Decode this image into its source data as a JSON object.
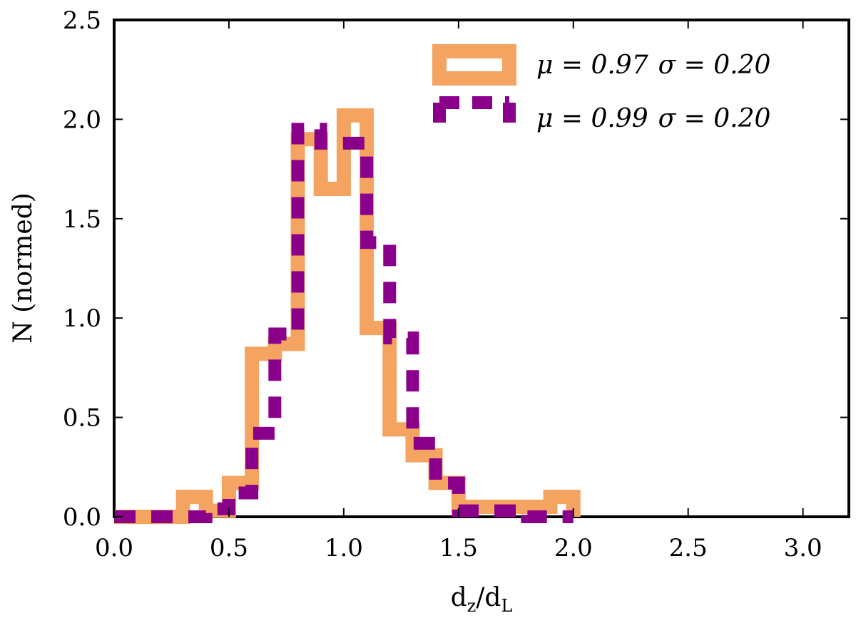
{
  "chart_data": {
    "type": "step",
    "title": "",
    "xlabel": "d_z/d_L",
    "ylabel": "N (normed)",
    "xlim": [
      0.0,
      3.2
    ],
    "ylim": [
      0.0,
      2.5
    ],
    "xticks": [
      "0.0",
      "0.5",
      "1.0",
      "1.5",
      "2.0",
      "2.5",
      "3.0"
    ],
    "xtick_values": [
      0.0,
      0.5,
      1.0,
      1.5,
      2.0,
      2.5,
      3.0
    ],
    "yticks": [
      "0.0",
      "0.5",
      "1.0",
      "1.5",
      "2.0",
      "2.5"
    ],
    "ytick_values": [
      0.0,
      0.5,
      1.0,
      1.5,
      2.0,
      2.5
    ],
    "grid": false,
    "legend_position": "top-right",
    "series": [
      {
        "name": "μ = 0.97 σ = 0.20",
        "mu": "0.97",
        "sigma": "0.20",
        "color": "#f4a460",
        "style": "solid",
        "bin_edges": [
          0.0,
          0.1,
          0.2,
          0.3,
          0.4,
          0.5,
          0.6,
          0.7,
          0.8,
          0.9,
          1.0,
          1.1,
          1.2,
          1.3,
          1.4,
          1.5,
          1.6,
          1.7,
          1.8,
          1.9,
          2.0
        ],
        "values": [
          0.0,
          0.0,
          0.0,
          0.1,
          0.03,
          0.17,
          0.82,
          0.87,
          1.9,
          1.65,
          2.02,
          0.95,
          0.44,
          0.31,
          0.17,
          0.05,
          0.05,
          0.05,
          0.05,
          0.1
        ]
      },
      {
        "name": "μ = 0.99 σ = 0.20",
        "mu": "0.99",
        "sigma": "0.20",
        "color": "#8b008b",
        "style": "dashed",
        "bin_edges": [
          0.0,
          0.1,
          0.2,
          0.3,
          0.4,
          0.5,
          0.6,
          0.7,
          0.8,
          0.9,
          1.0,
          1.1,
          1.2,
          1.3,
          1.4,
          1.5,
          1.6,
          1.7,
          1.8,
          1.9,
          2.0
        ],
        "values": [
          0.0,
          0.0,
          0.0,
          0.0,
          0.04,
          0.12,
          0.42,
          0.92,
          1.95,
          1.88,
          1.88,
          1.38,
          0.9,
          0.37,
          0.17,
          0.03,
          0.03,
          0.03,
          0.0,
          0.0
        ]
      }
    ],
    "legend": {
      "entries": [
        {
          "mu_label": "μ = 0.97",
          "sigma_label": "σ = 0.20"
        },
        {
          "mu_label": "μ = 0.99",
          "sigma_label": "σ = 0.20"
        }
      ]
    }
  }
}
